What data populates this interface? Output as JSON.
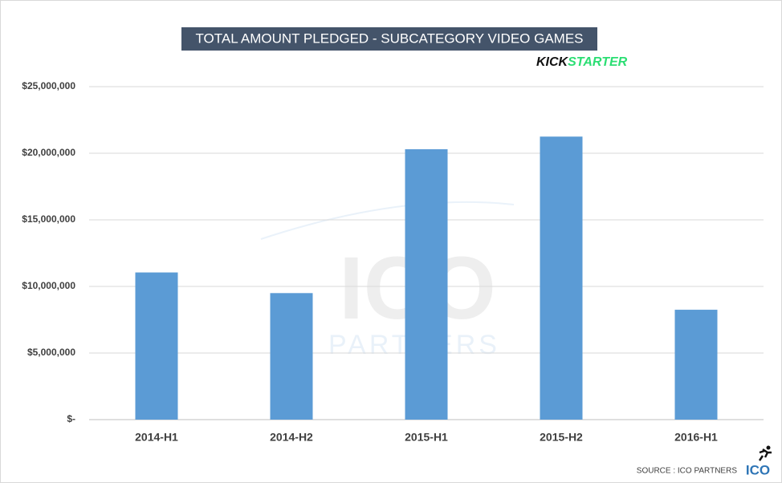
{
  "chart_data": {
    "type": "bar",
    "title": "TOTAL AMOUNT PLEDGED - SUBCATEGORY VIDEO GAMES",
    "categories": [
      "2014-H1",
      "2014-H2",
      "2015-H1",
      "2015-H2",
      "2016-H1"
    ],
    "values": [
      11050000,
      9500000,
      20300000,
      21250000,
      8250000
    ],
    "color": "#5b9bd5",
    "ylim": [
      0,
      25000000
    ],
    "yticks": [
      {
        "value": 0,
        "label": "$-"
      },
      {
        "value": 5000000,
        "label": "$5,000,000"
      },
      {
        "value": 10000000,
        "label": "$10,000,000"
      },
      {
        "value": 15000000,
        "label": "$15,000,000"
      },
      {
        "value": 20000000,
        "label": "$20,000,000"
      },
      {
        "value": 25000000,
        "label": "$25,000,000"
      }
    ],
    "grid": true
  },
  "branding": {
    "kickstarter": [
      "KICK",
      "STARTER"
    ],
    "watermark": [
      "ICO",
      "PARTNERS"
    ],
    "source": "SOURCE : ICO PARTNERS",
    "logo": "ICO"
  }
}
